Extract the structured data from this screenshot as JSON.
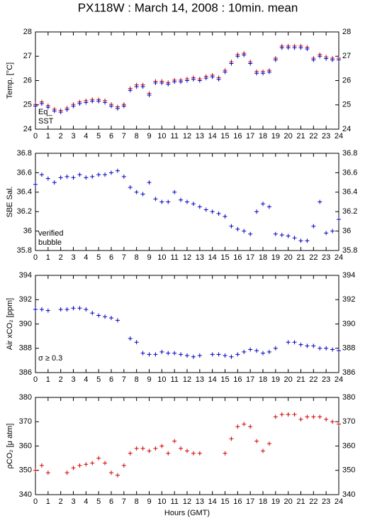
{
  "chart_data": [
    {
      "type": "scatter",
      "title": "PX118W : March 14, 2008 : 10min. mean",
      "ylabel": "Temp. [°C]",
      "x": [
        0,
        0.5,
        1,
        1.5,
        2,
        2.5,
        3,
        3.5,
        4,
        4.5,
        5,
        5.5,
        6,
        6.5,
        7,
        7.5,
        8,
        8.5,
        9,
        9.5,
        10,
        10.5,
        11,
        11.5,
        12,
        12.5,
        13,
        13.5,
        14,
        14.5,
        15,
        15.5,
        16,
        16.5,
        17,
        17.5,
        18,
        18.5,
        19,
        19.5,
        20,
        20.5,
        21,
        21.5,
        22,
        22.5,
        23,
        23.5,
        24
      ],
      "xlim": [
        0,
        24
      ],
      "xticks": [
        0,
        1,
        2,
        3,
        4,
        5,
        6,
        7,
        8,
        9,
        10,
        11,
        12,
        13,
        14,
        15,
        16,
        17,
        18,
        19,
        20,
        21,
        22,
        23,
        24
      ],
      "ylim": [
        24,
        28
      ],
      "yticks": [
        24,
        25,
        26,
        27,
        28
      ],
      "series": [
        {
          "name": "Eq_",
          "color": "#d00000",
          "values": [
            25.02,
            25.12,
            24.97,
            24.82,
            24.77,
            24.87,
            25.02,
            25.12,
            25.17,
            25.22,
            25.22,
            25.17,
            25.02,
            24.92,
            25.02,
            25.67,
            25.82,
            25.82,
            25.47,
            25.97,
            25.97,
            25.92,
            26.02,
            26.02,
            26.07,
            26.12,
            26.07,
            26.17,
            26.22,
            26.12,
            26.42,
            26.77,
            27.07,
            27.12,
            26.77,
            26.37,
            26.37,
            26.42,
            26.92,
            27.42,
            27.42,
            27.42,
            27.42,
            27.37,
            26.92,
            27.07,
            26.97,
            26.92,
            26.92
          ]
        },
        {
          "name": "SST",
          "color": "#0000c0",
          "values": [
            24.95,
            25.05,
            24.9,
            24.75,
            24.7,
            24.8,
            24.95,
            25.05,
            25.1,
            25.15,
            25.15,
            25.1,
            24.95,
            24.85,
            24.95,
            25.6,
            25.75,
            25.75,
            25.4,
            25.9,
            25.9,
            25.85,
            25.95,
            25.95,
            26.0,
            26.05,
            26.0,
            26.1,
            26.15,
            26.05,
            26.35,
            26.7,
            27.0,
            27.05,
            26.7,
            26.3,
            26.3,
            26.35,
            26.85,
            27.35,
            27.35,
            27.35,
            27.35,
            27.3,
            26.85,
            27.0,
            26.9,
            26.85,
            26.85
          ]
        }
      ]
    },
    {
      "type": "scatter",
      "ylabel": "SBE Sal.",
      "x": [
        0,
        0.5,
        1,
        1.5,
        2,
        2.5,
        3,
        3.5,
        4,
        4.5,
        5,
        5.5,
        6,
        6.5,
        7,
        7.5,
        8,
        8.5,
        9,
        9.5,
        10,
        10.5,
        11,
        11.5,
        12,
        12.5,
        13,
        13.5,
        14,
        14.5,
        15,
        15.5,
        16,
        16.5,
        17,
        17.5,
        18,
        18.5,
        19,
        19.5,
        20,
        20.5,
        21,
        21.5,
        22,
        22.5,
        23,
        23.5,
        24
      ],
      "xlim": [
        0,
        24
      ],
      "xticks": [
        0,
        1,
        2,
        3,
        4,
        5,
        6,
        7,
        8,
        9,
        10,
        11,
        12,
        13,
        14,
        15,
        16,
        17,
        18,
        19,
        20,
        21,
        22,
        23,
        24
      ],
      "ylim": [
        35.8,
        36.8
      ],
      "yticks": [
        35.8,
        36,
        36.2,
        36.4,
        36.6,
        36.8
      ],
      "series": [
        {
          "name": "verified",
          "color": "#0000c0",
          "values": [
            36.48,
            36.58,
            36.54,
            36.5,
            36.55,
            36.56,
            36.55,
            36.58,
            36.55,
            36.56,
            36.58,
            36.58,
            36.6,
            36.62,
            36.56,
            36.45,
            36.4,
            36.38,
            36.5,
            36.33,
            36.3,
            36.3,
            36.4,
            36.32,
            36.3,
            36.28,
            36.25,
            36.22,
            36.2,
            36.18,
            36.15,
            36.05,
            36.02,
            36.0,
            35.97,
            36.2,
            36.28,
            36.25,
            35.97,
            35.96,
            35.95,
            35.93,
            35.9,
            35.9,
            36.05,
            36.3,
            35.98,
            36.0,
            36.12
          ]
        },
        {
          "name": "bubble",
          "color": "#cc00cc",
          "values": [
            null,
            null,
            null,
            null,
            null,
            null,
            null,
            null,
            null,
            null,
            null,
            null,
            null,
            null,
            null,
            null,
            null,
            null,
            null,
            null,
            null,
            null,
            null,
            null,
            null,
            null,
            null,
            null,
            null,
            null,
            null,
            null,
            null,
            null,
            null,
            null,
            null,
            null,
            null,
            null,
            null,
            null,
            null,
            null,
            null,
            null,
            null,
            null,
            null
          ]
        }
      ]
    },
    {
      "type": "scatter",
      "ylabel": "Air xCO₂ [ppm]",
      "annotation": "σ ≥ 0.3",
      "annotation_color": "#cc00cc",
      "x": [
        0,
        0.5,
        1,
        1.5,
        2,
        2.5,
        3,
        3.5,
        4,
        4.5,
        5,
        5.5,
        6,
        6.5,
        7,
        7.5,
        8,
        8.5,
        9,
        9.5,
        10,
        10.5,
        11,
        11.5,
        12,
        12.5,
        13,
        13.5,
        14,
        14.5,
        15,
        15.5,
        16,
        16.5,
        17,
        17.5,
        18,
        18.5,
        19,
        19.5,
        20,
        20.5,
        21,
        21.5,
        22,
        22.5,
        23,
        23.5,
        24
      ],
      "xlim": [
        0,
        24
      ],
      "xticks": [
        0,
        1,
        2,
        3,
        4,
        5,
        6,
        7,
        8,
        9,
        10,
        11,
        12,
        13,
        14,
        15,
        16,
        17,
        18,
        19,
        20,
        21,
        22,
        23,
        24
      ],
      "ylim": [
        386,
        394
      ],
      "yticks": [
        386,
        388,
        390,
        392,
        394
      ],
      "series": [
        {
          "name": "xCO2",
          "color": "#0000c0",
          "values": [
            391.2,
            391.2,
            391.1,
            null,
            391.2,
            391.2,
            391.3,
            391.3,
            391.2,
            390.9,
            390.7,
            390.6,
            390.5,
            390.3,
            null,
            388.8,
            388.5,
            387.6,
            387.5,
            387.5,
            387.7,
            387.6,
            387.6,
            387.5,
            387.4,
            387.3,
            387.4,
            null,
            387.5,
            387.5,
            387.4,
            387.3,
            387.5,
            387.7,
            387.9,
            387.8,
            387.6,
            387.7,
            388.0,
            null,
            388.5,
            388.5,
            388.3,
            388.2,
            388.2,
            388.0,
            388.0,
            387.9,
            387.8
          ]
        }
      ]
    },
    {
      "type": "scatter",
      "ylabel": "ρCO₂ [μ atm]",
      "xlabel": "Hours (GMT)",
      "x": [
        0,
        0.5,
        1,
        1.5,
        2,
        2.5,
        3,
        3.5,
        4,
        4.5,
        5,
        5.5,
        6,
        6.5,
        7,
        7.5,
        8,
        8.5,
        9,
        9.5,
        10,
        10.5,
        11,
        11.5,
        12,
        12.5,
        13,
        13.5,
        14,
        14.5,
        15,
        15.5,
        16,
        16.5,
        17,
        17.5,
        18,
        18.5,
        19,
        19.5,
        20,
        20.5,
        21,
        21.5,
        22,
        22.5,
        23,
        23.5,
        24
      ],
      "xlim": [
        0,
        24
      ],
      "xticks": [
        0,
        1,
        2,
        3,
        4,
        5,
        6,
        7,
        8,
        9,
        10,
        11,
        12,
        13,
        14,
        15,
        16,
        17,
        18,
        19,
        20,
        21,
        22,
        23,
        24
      ],
      "ylim": [
        340,
        380
      ],
      "yticks": [
        340,
        350,
        360,
        370,
        380
      ],
      "series": [
        {
          "name": "pCO2",
          "color": "#d00000",
          "values": [
            350,
            352,
            349,
            null,
            null,
            349,
            351,
            352,
            352.5,
            353,
            355,
            353,
            349,
            348,
            352,
            357,
            359,
            359,
            358,
            359,
            360,
            357,
            362,
            359,
            358,
            357,
            357,
            null,
            null,
            null,
            357,
            363,
            368,
            369,
            368,
            362,
            358,
            361,
            372,
            373,
            373,
            373,
            371,
            372,
            372,
            372,
            371,
            370,
            369
          ]
        }
      ]
    }
  ]
}
